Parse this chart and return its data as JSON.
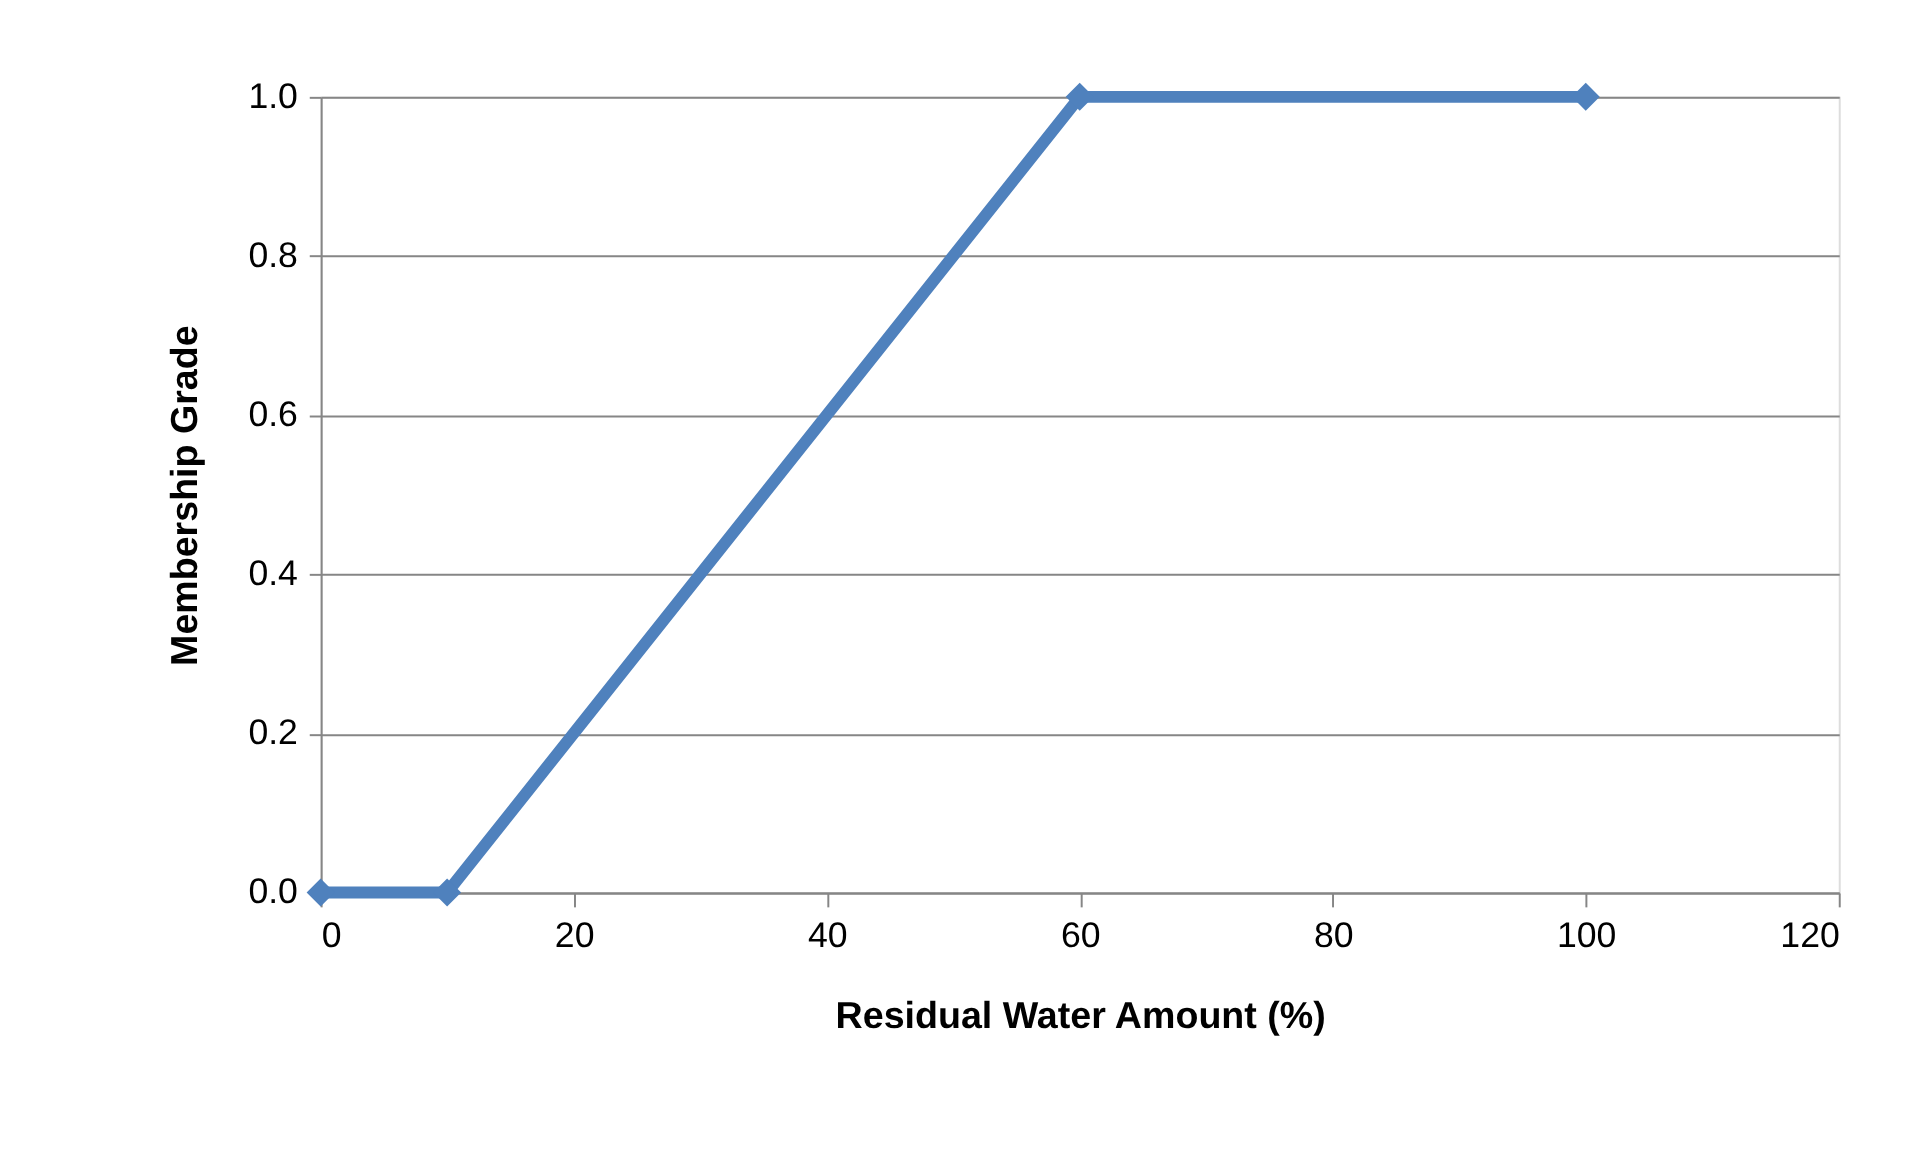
{
  "chart_data": {
    "type": "line",
    "xlabel": "Residual Water Amount (%)",
    "ylabel": "Membership Grade",
    "x": [
      0,
      10,
      60,
      100
    ],
    "series": [
      {
        "color": "#4f81bd",
        "values": [
          0,
          0,
          1,
          1
        ]
      }
    ],
    "xlim": [
      0,
      120
    ],
    "xticks": [
      0,
      20,
      40,
      60,
      80,
      100,
      120
    ],
    "ylim": [
      0,
      1
    ],
    "yticks": [
      {
        "value": 0,
        "label": "0.0"
      },
      {
        "value": 0.2,
        "label": "0.2"
      },
      {
        "value": 0.4,
        "label": "0.4"
      },
      {
        "value": 0.6,
        "label": "0.6"
      },
      {
        "value": 0.8,
        "label": "0.8"
      },
      {
        "value": 1,
        "label": "1.0"
      }
    ],
    "grid": "y",
    "marker": "diamond",
    "line_style": "solid"
  }
}
